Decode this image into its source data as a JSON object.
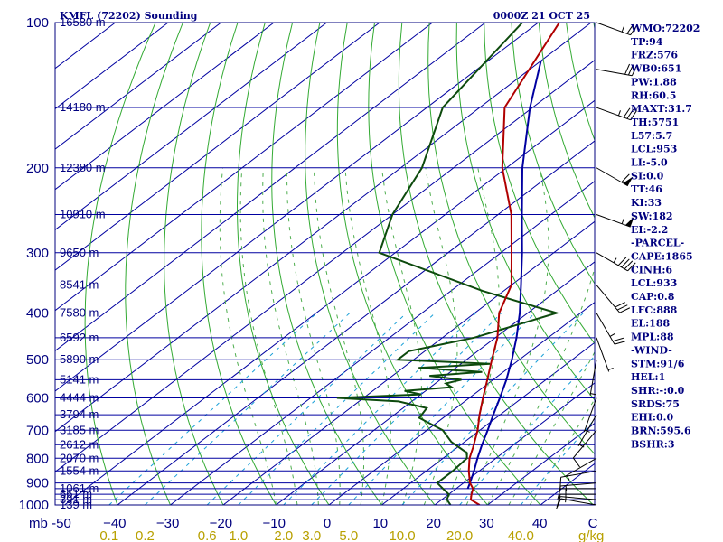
{
  "header": {
    "title": "KMFL (72202) Sounding",
    "time": "0000Z 21 OCT 25"
  },
  "chart_data": {
    "type": "line",
    "diagram": "skew-t log-p",
    "xlabel_left": "mb",
    "xlabel_right": "g/kg",
    "xlim": [
      -50,
      50
    ],
    "ylim": [
      1000,
      100
    ],
    "y_scale": "log",
    "pressure_ticks": [
      100,
      200,
      300,
      400,
      500,
      600,
      700,
      800,
      900,
      1000
    ],
    "temperature_ticks": [
      -50,
      -40,
      -30,
      -20,
      -10,
      0,
      10,
      20,
      30,
      40
    ],
    "temperature_tick_labels": [
      "-50",
      "−40",
      "−30",
      "−20",
      "−10",
      "0",
      "10",
      "20",
      "30",
      "40",
      "C"
    ],
    "mixing_ratio_labels": [
      "0.1",
      "0.2",
      "0.6",
      "1.0",
      "2.0",
      "3.0",
      "5.0",
      "10.0",
      "20.0",
      "40.0"
    ],
    "mixing_ratio_values": [
      0.1,
      0.2,
      0.6,
      1.0,
      2.0,
      3.0,
      5.0,
      10.0,
      20.0,
      40.0
    ],
    "mandatory_levels": [
      {
        "p": 1000,
        "h": "139 m"
      },
      {
        "p": 975,
        "h": "391 m"
      },
      {
        "p": 950,
        "h": "661 m"
      },
      {
        "p": 925,
        "h": "1061 m"
      },
      {
        "p": 850,
        "h": "1554 m"
      },
      {
        "p": 800,
        "h": "2070 m"
      },
      {
        "p": 750,
        "h": "2612 m"
      },
      {
        "p": 700,
        "h": "3185 m"
      },
      {
        "p": 650,
        "h": "3794 m"
      },
      {
        "p": 600,
        "h": "4444 m"
      },
      {
        "p": 550,
        "h": "5141 m"
      },
      {
        "p": 500,
        "h": "5890 m"
      },
      {
        "p": 450,
        "h": "6592 m"
      },
      {
        "p": 400,
        "h": "7580 m"
      },
      {
        "p": 350,
        "h": "8541 m"
      },
      {
        "p": 300,
        "h": "9650 m"
      },
      {
        "p": 250,
        "h": "10910 m"
      },
      {
        "p": 200,
        "h": "12380 m"
      },
      {
        "p": 150,
        "h": "14180 m"
      },
      {
        "p": 100,
        "h": "16580 m"
      }
    ],
    "temperature_profile": [
      [
        1000,
        28.5
      ],
      [
        975,
        25.5
      ],
      [
        950,
        24.3
      ],
      [
        925,
        23.2
      ],
      [
        900,
        21.2
      ],
      [
        850,
        18.0
      ],
      [
        800,
        15.0
      ],
      [
        760,
        13.0
      ],
      [
        700,
        9.6
      ],
      [
        650,
        6.1
      ],
      [
        600,
        2.6
      ],
      [
        550,
        -1.1
      ],
      [
        500,
        -5.2
      ],
      [
        450,
        -9.6
      ],
      [
        400,
        -15.4
      ],
      [
        350,
        -20.0
      ],
      [
        300,
        -28.0
      ],
      [
        250,
        -37.5
      ],
      [
        200,
        -50.8
      ],
      [
        150,
        -65.3
      ],
      [
        100,
        -76.0
      ]
    ],
    "dewpoint_profile": [
      [
        1000,
        23.0
      ],
      [
        975,
        21.0
      ],
      [
        950,
        20.0
      ],
      [
        925,
        17.5
      ],
      [
        900,
        15.0
      ],
      [
        850,
        15.0
      ],
      [
        800,
        14.5
      ],
      [
        780,
        13.2
      ],
      [
        740,
        7.5
      ],
      [
        700,
        3.0
      ],
      [
        660,
        -4.5
      ],
      [
        630,
        -5.5
      ],
      [
        610,
        -12.5
      ],
      [
        600,
        -25.0
      ],
      [
        590,
        -10.0
      ],
      [
        580,
        -14.0
      ],
      [
        570,
        -6.0
      ],
      [
        560,
        -8.0
      ],
      [
        550,
        -6.0
      ],
      [
        540,
        -13.0
      ],
      [
        530,
        -4.0
      ],
      [
        520,
        -17.0
      ],
      [
        510,
        -4.5
      ],
      [
        500,
        -23.0
      ],
      [
        480,
        -23.0
      ],
      [
        450,
        -14.0
      ],
      [
        400,
        -4.5
      ],
      [
        360,
        -24.0
      ],
      [
        300,
        -53.0
      ],
      [
        250,
        -60.0
      ],
      [
        200,
        -66.0
      ],
      [
        150,
        -77.0
      ],
      [
        100,
        -83.0
      ]
    ],
    "parcel_profile": [
      [
        925,
        22.2
      ],
      [
        900,
        21.2
      ],
      [
        850,
        19.0
      ],
      [
        800,
        16.5
      ],
      [
        750,
        14.0
      ],
      [
        700,
        11.5
      ],
      [
        650,
        8.7
      ],
      [
        600,
        5.8
      ],
      [
        550,
        2.5
      ],
      [
        500,
        -1.4
      ],
      [
        450,
        -6.0
      ],
      [
        400,
        -11.5
      ],
      [
        350,
        -18.2
      ],
      [
        300,
        -26.0
      ],
      [
        250,
        -35.5
      ],
      [
        200,
        -47.0
      ],
      [
        150,
        -60.5
      ],
      [
        120,
        -70.0
      ]
    ],
    "wind_barbs": [
      {
        "p": 1000,
        "dir": 100,
        "spd": 10
      },
      {
        "p": 975,
        "dir": 95,
        "spd": 15
      },
      {
        "p": 950,
        "dir": 90,
        "spd": 15
      },
      {
        "p": 925,
        "dir": 90,
        "spd": 15
      },
      {
        "p": 900,
        "dir": 85,
        "spd": 15
      },
      {
        "p": 850,
        "dir": 80,
        "spd": 10
      },
      {
        "p": 800,
        "dir": 60,
        "spd": 5
      },
      {
        "p": 700,
        "dir": 40,
        "spd": 10
      },
      {
        "p": 650,
        "dir": 30,
        "spd": 5
      },
      {
        "p": 600,
        "dir": 20,
        "spd": 5
      },
      {
        "p": 500,
        "dir": 10,
        "spd": 5
      },
      {
        "p": 450,
        "dir": 340,
        "spd": 5
      },
      {
        "p": 400,
        "dir": 330,
        "spd": 25
      },
      {
        "p": 350,
        "dir": 320,
        "spd": 30
      },
      {
        "p": 300,
        "dir": 300,
        "spd": 45
      },
      {
        "p": 250,
        "dir": 290,
        "spd": 55
      },
      {
        "p": 200,
        "dir": 300,
        "spd": 60
      },
      {
        "p": 150,
        "dir": 290,
        "spd": 35
      },
      {
        "p": 125,
        "dir": 280,
        "spd": 30
      },
      {
        "p": 100,
        "dir": 290,
        "spd": 25
      }
    ]
  },
  "indices": [
    "WMO:72202",
    "TP:94",
    "FRZ:576",
    "WB0:651",
    "PW:1.88",
    "RH:60.5",
    "MAXT:31.7",
    "TH:5751",
    "L57:5.7",
    "LCL:953",
    "LI:-5.0",
    "SI:0.0",
    "TT:46",
    "KI:33",
    "SW:182",
    "EI:-2.2",
    "-PARCEL-",
    "CAPE:1865",
    "CINH:6",
    "LCL:933",
    "CAP:0.8",
    "LFC:888",
    "EL:188",
    "MPL:88",
    "-WIND-",
    "STM:91/6",
    "HEL:1",
    "SHR:-:0.0",
    "SRDS:75",
    "EHI:0.0",
    "BRN:595.6",
    "BSHR:3"
  ],
  "colors": {
    "border": "#00007f",
    "isobar": "#0000a0",
    "isotherm": "#0000a0",
    "dry_adiabat": "#33aa33",
    "moist_adiabat": "#4fae4f",
    "mixing_ratio": "#1aa0d8",
    "temperature": "#b00000",
    "dewpoint": "#0d4a0d",
    "parcel": "#0000a0",
    "mix_label": "#b8a000"
  }
}
